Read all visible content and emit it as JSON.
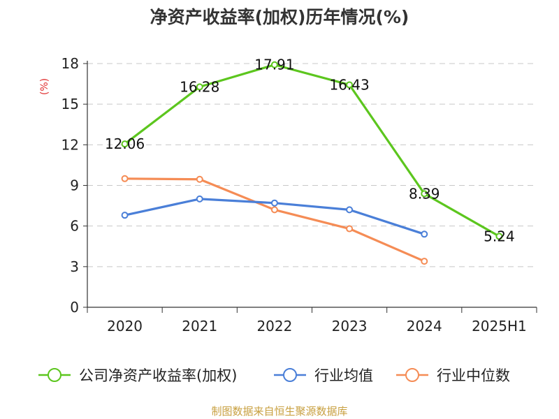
{
  "chart_data": {
    "type": "line",
    "title": "净资产收益率(加权)历年情况(%)",
    "ylabel": "(%)",
    "categories": [
      "2020",
      "2021",
      "2022",
      "2023",
      "2024",
      "2025H1"
    ],
    "ylim": [
      0,
      18
    ],
    "yticks": [
      0,
      3,
      6,
      9,
      12,
      15,
      18
    ],
    "grid": true,
    "legend_position": "bottom",
    "series": [
      {
        "name": "公司净资产收益率(加权)",
        "color": "#5cc61e",
        "values": [
          12.06,
          16.28,
          17.91,
          16.43,
          8.39,
          5.24
        ],
        "labels": [
          "12.06",
          "16.28",
          "17.91",
          "16.43",
          "8.39",
          "5.24"
        ]
      },
      {
        "name": "行业均值",
        "color": "#4a7fd8",
        "values": [
          6.8,
          8.0,
          7.7,
          7.2,
          5.4,
          null
        ]
      },
      {
        "name": "行业中位数",
        "color": "#f58c55",
        "values": [
          9.5,
          9.45,
          7.2,
          5.8,
          3.4,
          null
        ]
      }
    ]
  },
  "source": "制图数据来自恒生聚源数据库"
}
